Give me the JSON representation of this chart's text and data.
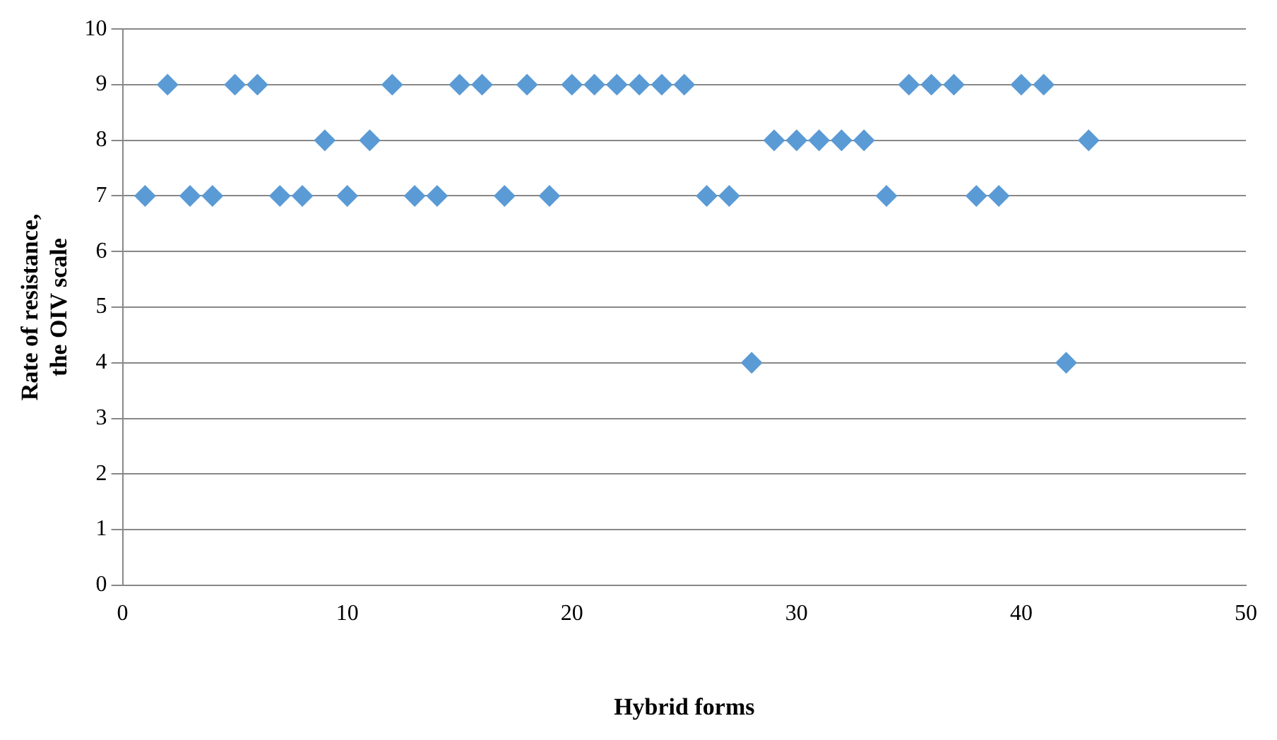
{
  "chart_data": {
    "type": "scatter",
    "xlabel": "Hybrid forms",
    "ylabel": "Rate of resistance,\nthe OIV scale",
    "x": [
      1,
      2,
      3,
      4,
      5,
      6,
      7,
      8,
      9,
      10,
      11,
      12,
      13,
      14,
      15,
      16,
      17,
      18,
      19,
      20,
      21,
      22,
      23,
      24,
      25,
      26,
      27,
      28,
      29,
      30,
      31,
      32,
      33,
      34,
      35,
      36,
      37,
      38,
      39,
      40,
      41,
      42,
      43
    ],
    "series": [
      {
        "color": "#5b9bd5",
        "values": [
          7,
          9,
          7,
          7,
          9,
          9,
          7,
          7,
          8,
          7,
          8,
          9,
          7,
          7,
          9,
          9,
          7,
          9,
          7,
          9,
          9,
          9,
          9,
          9,
          9,
          7,
          7,
          4,
          8,
          8,
          8,
          8,
          8,
          7,
          9,
          9,
          9,
          7,
          7,
          9,
          9,
          4,
          8
        ]
      }
    ],
    "xlim": [
      0,
      50
    ],
    "xticks": [
      0,
      10,
      20,
      30,
      40,
      50
    ],
    "ylim": [
      0,
      10
    ],
    "yticks": [
      0,
      1,
      2,
      3,
      4,
      5,
      6,
      7,
      8,
      9,
      10
    ],
    "grid": "y",
    "marker": "diamond",
    "legend": false
  }
}
